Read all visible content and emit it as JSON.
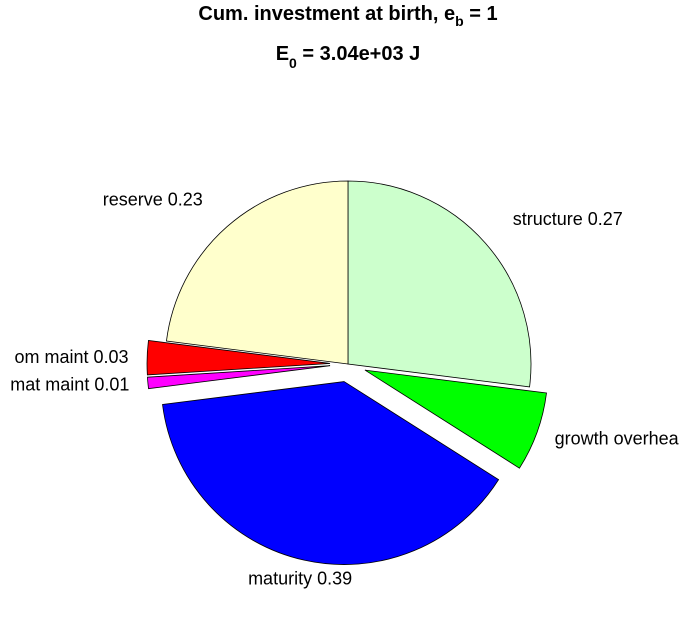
{
  "chart_data": {
    "type": "pie",
    "title": {
      "main": "Cum. investment at birth, e",
      "sub": "b",
      "rest": " = 1"
    },
    "subtitle": {
      "main": "E",
      "sub": "0",
      "rest": " = 3.04e+03 J"
    },
    "labels": [
      "structure 0.27",
      "growth overhea",
      "maturity 0.39",
      "mat maint 0.01",
      "om maint 0.03",
      "reserve 0.23"
    ],
    "values": [
      0.27,
      0.07,
      0.39,
      0.01,
      0.03,
      0.23
    ],
    "colors": [
      "#ccffcc",
      "#00ff00",
      "#0000ff",
      "#ff00ff",
      "#ff0000",
      "#ffffcc"
    ],
    "explode": [
      0,
      1,
      1,
      1,
      1,
      0
    ]
  }
}
